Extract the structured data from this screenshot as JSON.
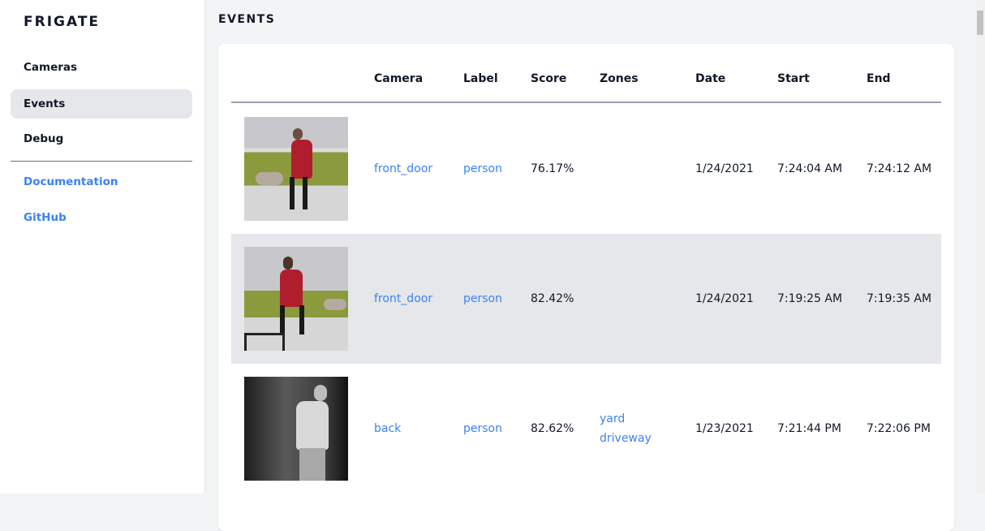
{
  "sidebar": {
    "brand": "FRIGATE",
    "items": [
      {
        "label": "Cameras",
        "active": false
      },
      {
        "label": "Events",
        "active": true
      },
      {
        "label": "Debug",
        "active": false
      }
    ],
    "links": [
      {
        "label": "Documentation"
      },
      {
        "label": "GitHub"
      }
    ]
  },
  "page": {
    "title": "EVENTS"
  },
  "table": {
    "headers": [
      "Camera",
      "Label",
      "Score",
      "Zones",
      "Date",
      "Start",
      "End"
    ],
    "rows": [
      {
        "camera": "front_door",
        "label": "person",
        "score": "76.17%",
        "zones": [
          "",
          ""
        ],
        "date": "1/24/2021",
        "start": "7:24:04 AM",
        "end": "7:24:12 AM"
      },
      {
        "camera": "front_door",
        "label": "person",
        "score": "82.42%",
        "zones": [
          "",
          ""
        ],
        "date": "1/24/2021",
        "start": "7:19:25 AM",
        "end": "7:19:35 AM"
      },
      {
        "camera": "back",
        "label": "person",
        "score": "82.62%",
        "zones": [
          "yard",
          "driveway"
        ],
        "date": "1/23/2021",
        "start": "7:21:44 PM",
        "end": "7:22:06 PM"
      }
    ]
  },
  "colors": {
    "accent": "#3b82f6",
    "active_bg": "#e5e7eb",
    "page_bg": "#f3f4f6"
  }
}
